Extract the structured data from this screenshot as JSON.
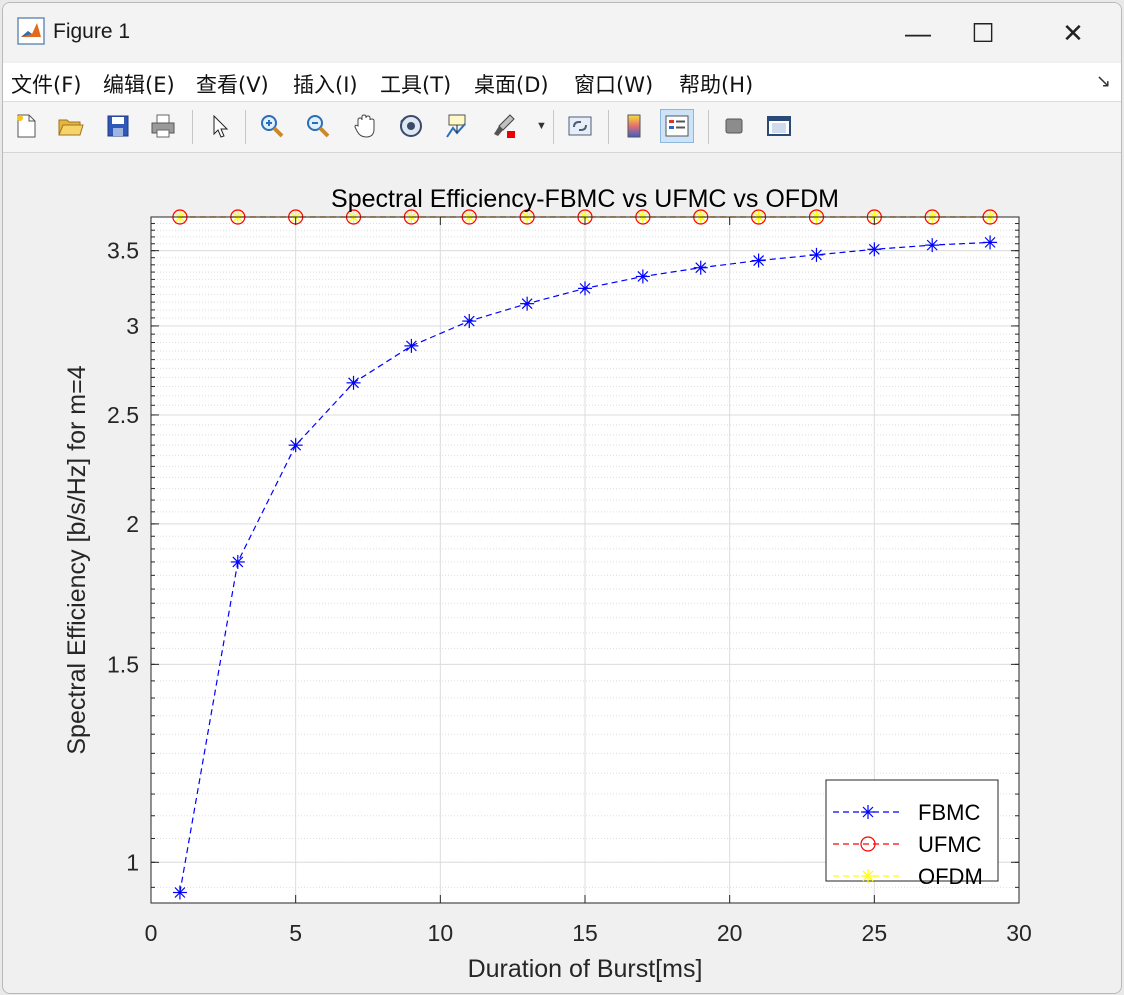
{
  "window": {
    "title": "Figure 1",
    "minimize_glyph": "—",
    "maximize_glyph": "☐",
    "close_glyph": "✕"
  },
  "menu": {
    "items": [
      {
        "label": "文件(F)"
      },
      {
        "label": "编辑(E)"
      },
      {
        "label": "查看(V)"
      },
      {
        "label": "插入(I)"
      },
      {
        "label": "工具(T)"
      },
      {
        "label": "桌面(D)"
      },
      {
        "label": "窗口(W)"
      },
      {
        "label": "帮助(H)"
      }
    ],
    "corner_glyph": "↘"
  },
  "toolbar": {
    "icons": [
      "new-figure-icon",
      "open-file-icon",
      "save-icon",
      "print-icon",
      "select-pointer-icon",
      "zoom-in-icon",
      "zoom-out-icon",
      "pan-hand-icon",
      "rotate-3d-icon",
      "data-cursor-icon",
      "brush-icon",
      "link-plot-icon",
      "colorbar-icon",
      "legend-icon",
      "hide-plot-tools-icon",
      "show-plot-tools-icon"
    ]
  },
  "chart_data": {
    "type": "line",
    "title": "Spectral Efficiency-FBMC vs UFMC vs OFDM",
    "xlabel": "Duration of Burst[ms]",
    "ylabel": "Spectral Efficiency [b/s/Hz] for m=4",
    "xlim": [
      0,
      30
    ],
    "ylim": [
      0.92,
      3.75
    ],
    "yscale": "log",
    "grid": true,
    "minor_grid": true,
    "x_ticks": [
      0,
      5,
      10,
      15,
      20,
      25,
      30
    ],
    "y_ticks": [
      1,
      1.5,
      2,
      2.5,
      3,
      3.5
    ],
    "x_tick_labels": [
      "0",
      "5",
      "10",
      "15",
      "20",
      "25",
      "30"
    ],
    "y_tick_labels": [
      "1",
      "1.5",
      "2",
      "2.5",
      "3",
      "3.5"
    ],
    "legend_position": "bottom-right",
    "x": [
      1,
      3,
      5,
      7,
      9,
      11,
      13,
      15,
      17,
      19,
      21,
      23,
      25,
      27,
      29
    ],
    "series": [
      {
        "name": "FBMC",
        "color": "#0000ff",
        "marker": "asterisk",
        "line": "dashed",
        "values": [
          0.94,
          1.85,
          2.35,
          2.67,
          2.88,
          3.03,
          3.14,
          3.24,
          3.32,
          3.38,
          3.43,
          3.47,
          3.51,
          3.54,
          3.56
        ]
      },
      {
        "name": "UFMC",
        "color": "#ff0000",
        "marker": "circle",
        "line": "dashed",
        "values": [
          3.75,
          3.75,
          3.75,
          3.75,
          3.75,
          3.75,
          3.75,
          3.75,
          3.75,
          3.75,
          3.75,
          3.75,
          3.75,
          3.75,
          3.75
        ]
      },
      {
        "name": "OFDM",
        "color": "#ffff00",
        "marker": "asterisk",
        "line": "dashed",
        "values": [
          3.75,
          3.75,
          3.75,
          3.75,
          3.75,
          3.75,
          3.75,
          3.75,
          3.75,
          3.75,
          3.75,
          3.75,
          3.75,
          3.75,
          3.75
        ]
      }
    ]
  }
}
